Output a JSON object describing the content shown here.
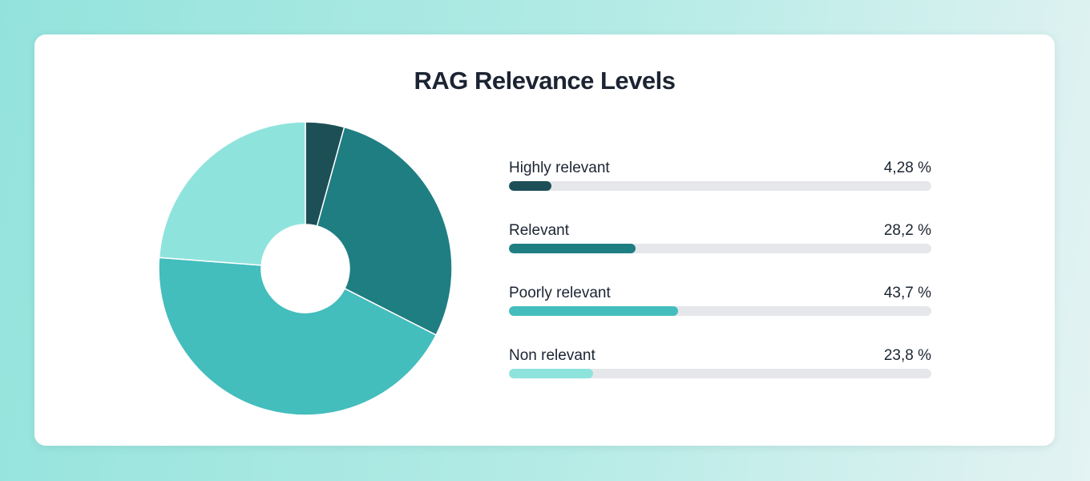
{
  "chart_data": {
    "type": "pie",
    "variant": "donut",
    "title": "RAG Relevance Levels",
    "categories": [
      "Highly relevant",
      "Relevant",
      "Poorly relevant",
      "Non relevant"
    ],
    "values": [
      4.28,
      28.2,
      43.7,
      23.8
    ],
    "value_labels": [
      "4,28 %",
      "28,2 %",
      "43,7 %",
      "23,8 %"
    ],
    "unit": "%",
    "colors": [
      "#1d4f57",
      "#1f7e82",
      "#44bdbd",
      "#8fe3dd"
    ],
    "bar_fill_fractions": [
      0.1,
      0.3,
      0.4,
      0.2
    ],
    "legend_position": "right"
  },
  "colors": {
    "card_background": "#ffffff",
    "track": "#e6e7eb",
    "text": "#1c2433"
  }
}
